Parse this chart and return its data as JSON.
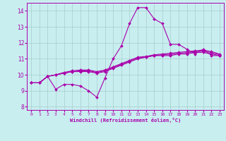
{
  "title": "",
  "xlabel": "Windchill (Refroidissement éolien,°C)",
  "ylabel": "",
  "bg_color": "#c8eef0",
  "line_color": "#aa00aa",
  "grid_color": "#aacccc",
  "xlim": [
    -0.5,
    23.5
  ],
  "ylim": [
    7.8,
    14.5
  ],
  "yticks": [
    8,
    9,
    10,
    11,
    12,
    13,
    14
  ],
  "xticks": [
    0,
    1,
    2,
    3,
    4,
    5,
    6,
    7,
    8,
    9,
    10,
    11,
    12,
    13,
    14,
    15,
    16,
    17,
    18,
    19,
    20,
    21,
    22,
    23
  ],
  "series": [
    [
      9.5,
      9.5,
      9.9,
      9.1,
      9.4,
      9.4,
      9.3,
      9.0,
      8.6,
      9.8,
      11.0,
      11.8,
      13.2,
      14.2,
      14.2,
      13.5,
      13.2,
      11.9,
      11.9,
      11.6,
      11.3,
      11.6,
      11.2,
      11.2
    ],
    [
      9.5,
      9.5,
      9.9,
      10.0,
      10.1,
      10.2,
      10.2,
      10.2,
      10.1,
      10.2,
      10.4,
      10.6,
      10.8,
      11.0,
      11.1,
      11.2,
      11.2,
      11.2,
      11.3,
      11.3,
      11.4,
      11.4,
      11.3,
      11.2
    ],
    [
      9.5,
      9.5,
      9.9,
      10.0,
      10.15,
      10.25,
      10.3,
      10.3,
      10.2,
      10.3,
      10.5,
      10.7,
      10.9,
      11.1,
      11.15,
      11.25,
      11.3,
      11.35,
      11.4,
      11.45,
      11.5,
      11.55,
      11.45,
      11.3
    ],
    [
      9.5,
      9.5,
      9.9,
      10.0,
      10.1,
      10.2,
      10.25,
      10.25,
      10.15,
      10.25,
      10.45,
      10.65,
      10.85,
      11.05,
      11.1,
      11.2,
      11.25,
      11.28,
      11.35,
      11.38,
      11.45,
      11.48,
      11.38,
      11.25
    ]
  ],
  "marker": "D",
  "markersize": 2.0,
  "linewidth": 0.8
}
